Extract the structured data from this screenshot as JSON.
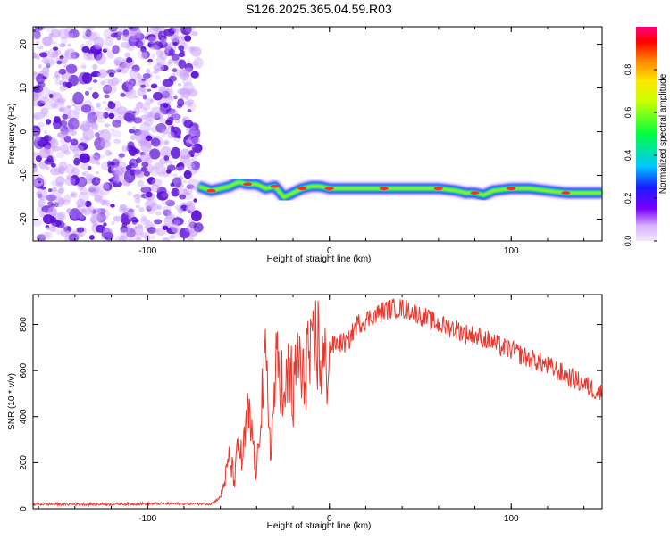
{
  "title": "S126.2025.365.04.59.R03",
  "colors": {
    "snr_line": "#e8382e",
    "low_density": "#c89cff",
    "high_density": "#5a0fd6",
    "track_core": "#ff2a2a"
  },
  "chart_data": [
    {
      "type": "heatmap",
      "name": "spectrogram",
      "xlabel": "Height of straight line (km)",
      "ylabel": "Frequency (Hz)",
      "xlim": [
        -163,
        150
      ],
      "ylim": [
        -25,
        24
      ],
      "xticks": [
        -100,
        0,
        100
      ],
      "yticks": [
        -20,
        -10,
        0,
        10,
        20
      ],
      "noise_region_x": [
        -163,
        -72
      ],
      "track": {
        "x": [
          -72,
          -65,
          -55,
          -50,
          -45,
          -40,
          -35,
          -30,
          -25,
          -20,
          -15,
          -10,
          -5,
          0,
          10,
          20,
          30,
          40,
          50,
          60,
          70,
          75,
          80,
          85,
          90,
          100,
          110,
          120,
          130,
          140,
          150
        ],
        "frequency": [
          -12.5,
          -13.5,
          -12.5,
          -11.5,
          -12,
          -12,
          -13,
          -12.5,
          -15,
          -14,
          -13,
          -12.5,
          -12.5,
          -13,
          -13,
          -13,
          -13,
          -13,
          -13,
          -13,
          -13.5,
          -14,
          -14,
          -14.5,
          -13.5,
          -13,
          -13,
          -13.5,
          -14,
          -14,
          -14
        ]
      },
      "colorbar": {
        "label": "Normalized spectral amplitude",
        "ticks": [
          "0.0",
          "0.2",
          "0.4",
          "0.6",
          "0.8"
        ],
        "range": [
          0,
          1
        ]
      }
    },
    {
      "type": "line",
      "name": "snr",
      "xlabel": "Height of straight line (km)",
      "ylabel": "SNR (10 * v/v)",
      "xlim": [
        -163,
        150
      ],
      "ylim": [
        0,
        930
      ],
      "xticks": [
        -100,
        0,
        100
      ],
      "yticks": [
        0,
        200,
        400,
        600,
        800
      ],
      "x": [
        -163,
        -140,
        -120,
        -100,
        -80,
        -65,
        -60,
        -57,
        -55,
        -52,
        -50,
        -48,
        -45,
        -42,
        -40,
        -38,
        -35,
        -32,
        -30,
        -27,
        -25,
        -22,
        -20,
        -17,
        -15,
        -12,
        -10,
        -7,
        -5,
        -2,
        0,
        5,
        10,
        15,
        20,
        25,
        30,
        35,
        40,
        45,
        50,
        55,
        60,
        65,
        70,
        75,
        80,
        85,
        90,
        95,
        100,
        105,
        110,
        115,
        120,
        125,
        130,
        135,
        140,
        145,
        150
      ],
      "y": [
        20,
        20,
        20,
        22,
        22,
        22,
        50,
        140,
        220,
        120,
        300,
        200,
        400,
        300,
        120,
        450,
        600,
        250,
        550,
        650,
        400,
        650,
        450,
        700,
        500,
        700,
        600,
        750,
        650,
        600,
        700,
        720,
        720,
        800,
        820,
        840,
        860,
        870,
        870,
        860,
        840,
        820,
        800,
        790,
        780,
        760,
        750,
        740,
        720,
        700,
        690,
        670,
        650,
        640,
        620,
        600,
        580,
        560,
        540,
        520,
        500
      ]
    }
  ]
}
